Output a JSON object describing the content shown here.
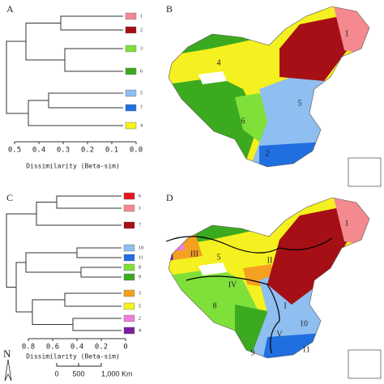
{
  "panels": [
    {
      "label": "A",
      "leaves": [
        {
          "label": "1",
          "color": "#f4898f"
        },
        {
          "label": "2",
          "color": "#a50f15"
        },
        {
          "label": "3",
          "color": "#7fe03a"
        },
        {
          "label": "6",
          "color": "#3caa1e"
        },
        {
          "label": "5",
          "color": "#8fbef0"
        },
        {
          "label": "7",
          "color": "#1f6fe0"
        },
        {
          "label": "4",
          "color": "#f5f020"
        }
      ],
      "axis_ticks": [
        "0.5",
        "0.4",
        "0.3",
        "0.2",
        "0.1",
        "0.0"
      ],
      "axis_title": "Dissimilarity (Beta-sim)"
    },
    {
      "label": "B",
      "regions": [
        "1",
        "4",
        "5",
        "6",
        "2"
      ]
    },
    {
      "label": "C",
      "leaves": [
        {
          "label": "6",
          "color": "#e8141e"
        },
        {
          "label": "1",
          "color": "#f4898f"
        },
        {
          "label": "7",
          "color": "#a50f15"
        },
        {
          "label": "10",
          "color": "#8fbef0"
        },
        {
          "label": "11",
          "color": "#1f6fe0"
        },
        {
          "label": "8",
          "color": "#7fe03a"
        },
        {
          "label": "9",
          "color": "#3caa1e"
        },
        {
          "label": "3",
          "color": "#f5a020"
        },
        {
          "label": "5",
          "color": "#f5f020"
        },
        {
          "label": "2",
          "color": "#f07ce0"
        },
        {
          "label": "4",
          "color": "#7a1fa0"
        }
      ],
      "axis_ticks": [
        "0.8",
        "0.6",
        "0.4",
        "0.2",
        "0"
      ],
      "axis_title": "Dissimilarity (Beta-sim)"
    },
    {
      "label": "D",
      "regions": [
        "1",
        "III",
        "5",
        "II",
        "IV",
        "8",
        "I",
        "10",
        "V",
        "9",
        "11"
      ]
    }
  ],
  "scale_bar": {
    "north": "N",
    "labels": [
      "0",
      "500",
      "1,000 Km"
    ]
  }
}
